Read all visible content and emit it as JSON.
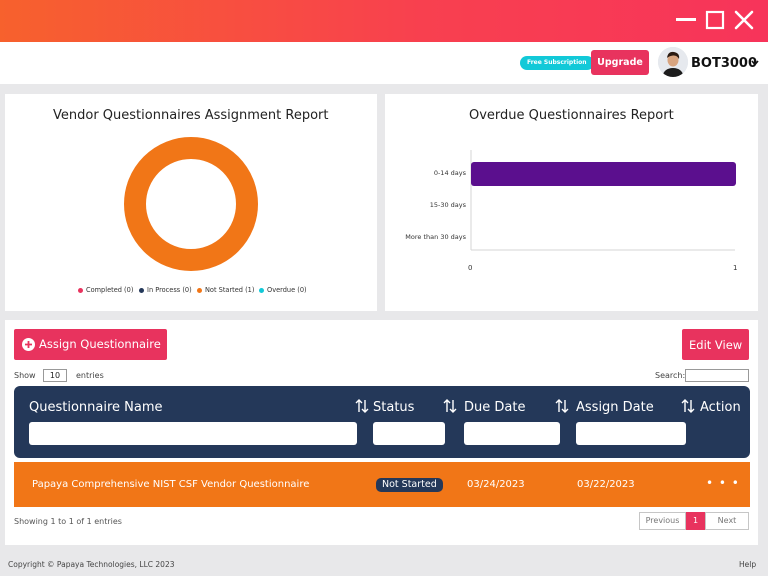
{
  "window": {
    "controls": [
      "minimize-icon",
      "maximize-icon",
      "close-icon"
    ]
  },
  "header": {
    "free_badge": "Free Subscription",
    "upgrade_label": "Upgrade",
    "username": "BOT3000",
    "accent": "#e8335e"
  },
  "assignment_card": {
    "title": "Vendor Questionnaires Assignment Report",
    "legend": [
      {
        "label": "Completed (0)",
        "color": "#e8335e"
      },
      {
        "label": "In Process (0)",
        "color": "#243859"
      },
      {
        "label": "Not Started (1)",
        "color": "#f17617"
      },
      {
        "label": "Overdue (0)",
        "color": "#12c9d8"
      }
    ]
  },
  "overdue_card": {
    "title": "Overdue Questionnaires Report"
  },
  "chart_data": [
    {
      "type": "pie",
      "title": "Vendor Questionnaires Assignment Report",
      "donut": true,
      "categories": [
        "Completed",
        "In Process",
        "Not Started",
        "Overdue"
      ],
      "values": [
        0,
        0,
        1,
        0
      ],
      "colors": [
        "#e8335e",
        "#243859",
        "#f17617",
        "#12c9d8"
      ]
    },
    {
      "type": "bar",
      "orientation": "horizontal",
      "title": "Overdue Questionnaires Report",
      "categories": [
        "0-14 days",
        "15-30 days",
        "More than 30 days"
      ],
      "values": [
        1,
        0,
        0
      ],
      "xlim": [
        0,
        1
      ],
      "xticks": [
        "0",
        "1"
      ],
      "bar_color": "#5b0f8e"
    }
  ],
  "toolbar": {
    "assign_label": "Assign Questionnaire",
    "edit_view_label": "Edit View",
    "show_label": "Show",
    "entries_value": "10",
    "entries_label": "entries",
    "search_label": "Search:"
  },
  "table": {
    "columns": [
      "Questionnaire Name",
      "Status",
      "Due Date",
      "Assign Date",
      "Action"
    ],
    "rows": [
      {
        "name": "Papaya Comprehensive NIST CSF Vendor Questionnaire",
        "status": "Not Started",
        "due_date": "03/24/2023",
        "assign_date": "03/22/2023",
        "action": "• • •"
      }
    ],
    "info": "Showing 1 to 1 of 1 entries",
    "pagination": {
      "previous": "Previous",
      "current": "1",
      "next": "Next"
    }
  },
  "footer": {
    "copyright": "Copyright  ©  Papaya Technologies, LLC 2023",
    "help": "Help"
  }
}
